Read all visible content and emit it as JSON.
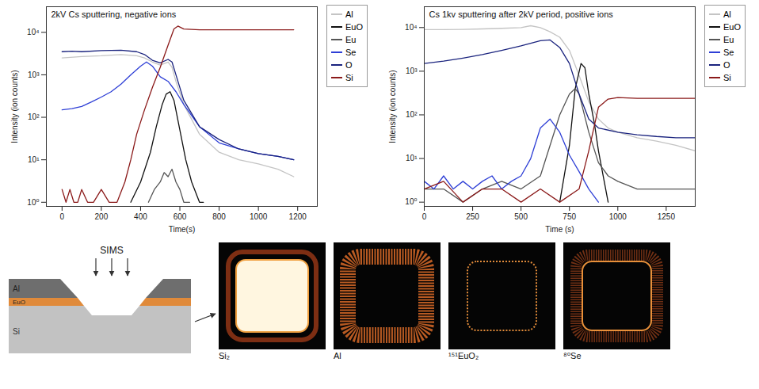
{
  "chart_data": [
    {
      "type": "line",
      "title": "2kV Cs sputtering, negative ions",
      "x_label": "Time(s)",
      "y_label": "Intensity (ion counts)",
      "log": "y",
      "legend": "right",
      "grid": false,
      "xlim": [
        -80,
        1300
      ],
      "xticks": [
        0,
        200,
        400,
        600,
        800,
        1000,
        1200
      ],
      "ylim": [
        0.8,
        40000
      ],
      "yticks": [
        {
          "value": 1,
          "label": "10⁰"
        },
        {
          "value": 10,
          "label": "10¹"
        },
        {
          "value": 100,
          "label": "10²"
        },
        {
          "value": 1000,
          "label": "10³"
        },
        {
          "value": 10000,
          "label": "10⁴"
        }
      ],
      "series": [
        {
          "name": "Al",
          "color": "#c4c4c4",
          "x": [
            0,
            100,
            200,
            300,
            380,
            420,
            460,
            500,
            540,
            560,
            580,
            620,
            700,
            800,
            900,
            1000,
            1100,
            1180
          ],
          "values": [
            2500,
            2700,
            2800,
            3000,
            2800,
            2500,
            2000,
            1700,
            2000,
            1500,
            700,
            200,
            40,
            15,
            10,
            8,
            6,
            4
          ]
        },
        {
          "name": "EuO",
          "color": "#111111",
          "x": [
            350,
            400,
            450,
            480,
            510,
            530,
            550,
            570,
            600,
            630,
            660,
            700,
            720
          ],
          "values": [
            1,
            3,
            15,
            60,
            200,
            350,
            400,
            250,
            50,
            10,
            3,
            1,
            1
          ]
        },
        {
          "name": "Eu",
          "color": "#555555",
          "x": [
            440,
            470,
            500,
            520,
            540,
            560,
            580,
            600,
            620,
            650
          ],
          "values": [
            1,
            2,
            3,
            5,
            4,
            6,
            3,
            2,
            1,
            1
          ]
        },
        {
          "name": "Se",
          "color": "#2e3fd6",
          "x": [
            0,
            50,
            100,
            150,
            200,
            250,
            300,
            350,
            400,
            430,
            460,
            500,
            540,
            580,
            620,
            700,
            800,
            900,
            1000,
            1100,
            1180
          ],
          "values": [
            150,
            160,
            180,
            230,
            300,
            400,
            600,
            1000,
            1600,
            2000,
            1600,
            900,
            700,
            400,
            200,
            60,
            25,
            18,
            14,
            12,
            10
          ]
        },
        {
          "name": "O",
          "color": "#1a237e",
          "x": [
            0,
            50,
            100,
            200,
            300,
            380,
            420,
            460,
            500,
            540,
            560,
            580,
            620,
            700,
            800,
            900,
            1000,
            1100,
            1180
          ],
          "values": [
            3500,
            3600,
            3500,
            3700,
            3800,
            3500,
            3000,
            2200,
            1900,
            2300,
            2000,
            1000,
            250,
            60,
            30,
            18,
            14,
            12,
            10
          ]
        },
        {
          "name": "Si",
          "color": "#8b1a1a",
          "x": [
            0,
            20,
            40,
            60,
            80,
            100,
            130,
            160,
            200,
            240,
            280,
            320,
            350,
            380,
            420,
            460,
            500,
            540,
            570,
            590,
            620,
            700,
            800,
            900,
            1000,
            1100,
            1180
          ],
          "values": [
            2,
            1,
            2,
            1,
            1,
            2,
            1,
            1,
            2,
            1,
            1,
            3,
            10,
            40,
            150,
            500,
            1500,
            5000,
            12000,
            14000,
            12000,
            11500,
            11500,
            11500,
            11500,
            11500,
            11500
          ]
        }
      ]
    },
    {
      "type": "line",
      "title": "Cs 1kv sputtering after 2kV period, positive ions",
      "x_label": "Time (s)",
      "y_label": "Intensity (ion counts)",
      "log": "y",
      "legend": "right",
      "grid": false,
      "xlim": [
        0,
        1400
      ],
      "xticks": [
        0,
        250,
        500,
        750,
        1000,
        1250
      ],
      "ylim": [
        0.8,
        30000
      ],
      "yticks": [
        {
          "value": 1,
          "label": "10⁰"
        },
        {
          "value": 10,
          "label": "10¹"
        },
        {
          "value": 100,
          "label": "10²"
        },
        {
          "value": 1000,
          "label": "10³"
        },
        {
          "value": 10000,
          "label": "10⁴"
        }
      ],
      "series": [
        {
          "name": "Al",
          "color": "#c4c4c4",
          "x": [
            0,
            100,
            200,
            300,
            400,
            500,
            550,
            600,
            650,
            700,
            750,
            800,
            850,
            900,
            950,
            1000,
            1100,
            1200,
            1300,
            1400
          ],
          "values": [
            9000,
            9000,
            9100,
            9300,
            9600,
            10000,
            11000,
            10000,
            8000,
            6000,
            3000,
            800,
            200,
            80,
            50,
            40,
            30,
            25,
            20,
            15
          ]
        },
        {
          "name": "EuO",
          "color": "#111111",
          "x": [
            700,
            750,
            780,
            810,
            830,
            850,
            880,
            900,
            950
          ],
          "values": [
            1,
            20,
            400,
            1500,
            1200,
            300,
            60,
            15,
            1
          ]
        },
        {
          "name": "Eu",
          "color": "#555555",
          "x": [
            0,
            100,
            200,
            300,
            400,
            500,
            600,
            650,
            700,
            750,
            780,
            800,
            850,
            900,
            950,
            1000,
            1100,
            1200,
            1300,
            1400
          ],
          "values": [
            2,
            2,
            1,
            2,
            3,
            2,
            4,
            20,
            100,
            300,
            400,
            300,
            40,
            8,
            4,
            3,
            2,
            2,
            2,
            2
          ]
        },
        {
          "name": "Se",
          "color": "#2e3fd6",
          "x": [
            0,
            50,
            100,
            150,
            200,
            250,
            300,
            350,
            400,
            450,
            500,
            550,
            600,
            650,
            700,
            750,
            800,
            850,
            900
          ],
          "values": [
            3,
            2,
            4,
            2,
            3,
            2,
            3,
            4,
            2,
            3,
            4,
            10,
            50,
            80,
            40,
            12,
            5,
            2,
            1
          ]
        },
        {
          "name": "O",
          "color": "#1a237e",
          "x": [
            0,
            100,
            200,
            300,
            400,
            500,
            600,
            650,
            700,
            750,
            800,
            850,
            900,
            1000,
            1100,
            1200,
            1300,
            1400
          ],
          "values": [
            1500,
            1700,
            2000,
            2400,
            3000,
            3800,
            5000,
            5200,
            3500,
            1500,
            300,
            80,
            50,
            40,
            35,
            32,
            30,
            30
          ]
        },
        {
          "name": "Si",
          "color": "#8b1a1a",
          "x": [
            0,
            100,
            200,
            300,
            400,
            500,
            600,
            700,
            800,
            850,
            900,
            950,
            1000,
            1100,
            1200,
            1300,
            1400
          ],
          "values": [
            2,
            3,
            1,
            2,
            2,
            1,
            2,
            1,
            2,
            15,
            150,
            230,
            250,
            240,
            240,
            240,
            240
          ]
        }
      ]
    }
  ],
  "diagram": {
    "label": "SIMS",
    "layers": [
      "Al",
      "EuO",
      "Si"
    ]
  },
  "images": [
    "Si₂",
    "Al",
    "¹⁵¹EuO₂",
    "⁸⁰Se"
  ]
}
